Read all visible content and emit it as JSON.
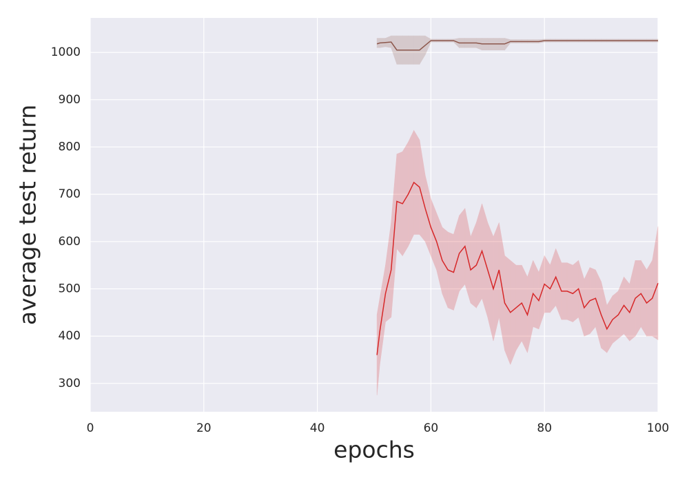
{
  "chart_data": {
    "type": "line",
    "xlabel": "epochs",
    "ylabel": "average test return",
    "xlim": [
      0,
      100
    ],
    "xticks": [
      0,
      20,
      40,
      60,
      80,
      100
    ],
    "ylim": [
      240,
      1073
    ],
    "yticks": [
      300,
      400,
      500,
      600,
      700,
      800,
      900,
      1000
    ],
    "grid": true,
    "x": [
      50.5,
      51,
      52,
      53,
      54,
      55,
      56,
      57,
      58,
      59,
      60,
      61,
      62,
      63,
      64,
      65,
      66,
      67,
      68,
      69,
      70,
      71,
      72,
      73,
      74,
      75,
      76,
      77,
      78,
      79,
      80,
      81,
      82,
      83,
      84,
      85,
      86,
      87,
      88,
      89,
      90,
      91,
      92,
      93,
      94,
      95,
      96,
      97,
      98,
      99,
      100
    ],
    "series": [
      {
        "color": "#d62728",
        "values": [
          360,
          410,
          490,
          540,
          685,
          680,
          700,
          725,
          715,
          670,
          630,
          600,
          560,
          540,
          535,
          575,
          590,
          540,
          550,
          580,
          540,
          500,
          540,
          470,
          450,
          460,
          470,
          445,
          490,
          475,
          510,
          500,
          525,
          495,
          495,
          490,
          500,
          460,
          475,
          480,
          445,
          415,
          435,
          445,
          465,
          450,
          480,
          490,
          470,
          480,
          512
        ],
        "lower": [
          275,
          340,
          430,
          440,
          585,
          570,
          590,
          615,
          615,
          600,
          570,
          540,
          490,
          460,
          455,
          495,
          510,
          470,
          460,
          480,
          440,
          390,
          440,
          370,
          340,
          370,
          390,
          365,
          420,
          415,
          450,
          450,
          465,
          435,
          435,
          430,
          440,
          400,
          405,
          420,
          375,
          365,
          385,
          395,
          405,
          390,
          400,
          420,
          400,
          400,
          392
        ],
        "upper": [
          445,
          480,
          550,
          640,
          785,
          790,
          810,
          835,
          815,
          740,
          690,
          660,
          630,
          620,
          615,
          655,
          670,
          610,
          640,
          680,
          640,
          610,
          640,
          570,
          560,
          550,
          550,
          525,
          560,
          535,
          570,
          550,
          585,
          555,
          555,
          550,
          560,
          520,
          545,
          540,
          515,
          465,
          485,
          495,
          525,
          510,
          560,
          560,
          540,
          560,
          632
        ]
      },
      {
        "color": "#8c564b",
        "values": [
          1018,
          1020,
          1021,
          1022,
          1005,
          1005,
          1005,
          1005,
          1005,
          1015,
          1025,
          1025,
          1025,
          1025,
          1025,
          1020,
          1020,
          1020,
          1020,
          1018,
          1018,
          1018,
          1018,
          1018,
          1023,
          1023,
          1023,
          1023,
          1023,
          1023,
          1025,
          1025,
          1025,
          1025,
          1025,
          1025,
          1025,
          1025,
          1025,
          1025,
          1025,
          1025,
          1025,
          1025,
          1025,
          1025,
          1025,
          1025,
          1025,
          1025,
          1025
        ],
        "lower": [
          1010,
          1010,
          1012,
          1010,
          975,
          975,
          975,
          975,
          975,
          995,
          1022,
          1022,
          1022,
          1022,
          1022,
          1010,
          1010,
          1010,
          1010,
          1005,
          1005,
          1005,
          1005,
          1005,
          1020,
          1020,
          1020,
          1020,
          1020,
          1020,
          1022,
          1022,
          1022,
          1022,
          1022,
          1022,
          1022,
          1022,
          1022,
          1022,
          1022,
          1022,
          1022,
          1022,
          1022,
          1022,
          1022,
          1022,
          1022,
          1022,
          1022
        ],
        "upper": [
          1030,
          1030,
          1030,
          1035,
          1035,
          1035,
          1035,
          1035,
          1035,
          1035,
          1028,
          1028,
          1028,
          1028,
          1028,
          1030,
          1030,
          1030,
          1030,
          1030,
          1030,
          1030,
          1030,
          1030,
          1027,
          1027,
          1027,
          1027,
          1027,
          1027,
          1028,
          1028,
          1028,
          1028,
          1028,
          1028,
          1028,
          1028,
          1028,
          1028,
          1028,
          1028,
          1028,
          1028,
          1028,
          1028,
          1028,
          1028,
          1028,
          1028,
          1028
        ]
      }
    ]
  }
}
